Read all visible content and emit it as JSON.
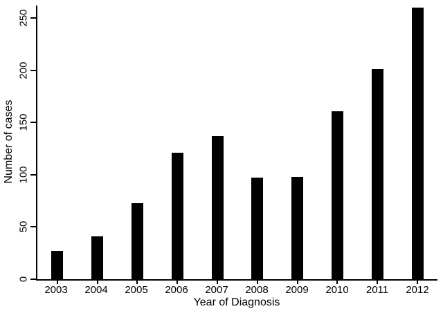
{
  "chart_data": {
    "type": "bar",
    "title": "",
    "xlabel": "Year of Diagnosis",
    "ylabel": "Number of cases",
    "categories": [
      "2003",
      "2004",
      "2005",
      "2006",
      "2007",
      "2008",
      "2009",
      "2010",
      "2011",
      "2012"
    ],
    "values": [
      27,
      41,
      73,
      121,
      137,
      97,
      98,
      161,
      201,
      260
    ],
    "ylim": [
      0,
      262
    ],
    "yticks": [
      0,
      50,
      100,
      150,
      200,
      250
    ],
    "bar_color": "#000000",
    "background_color": "#ffffff",
    "grid": false,
    "legend_position": "none"
  }
}
